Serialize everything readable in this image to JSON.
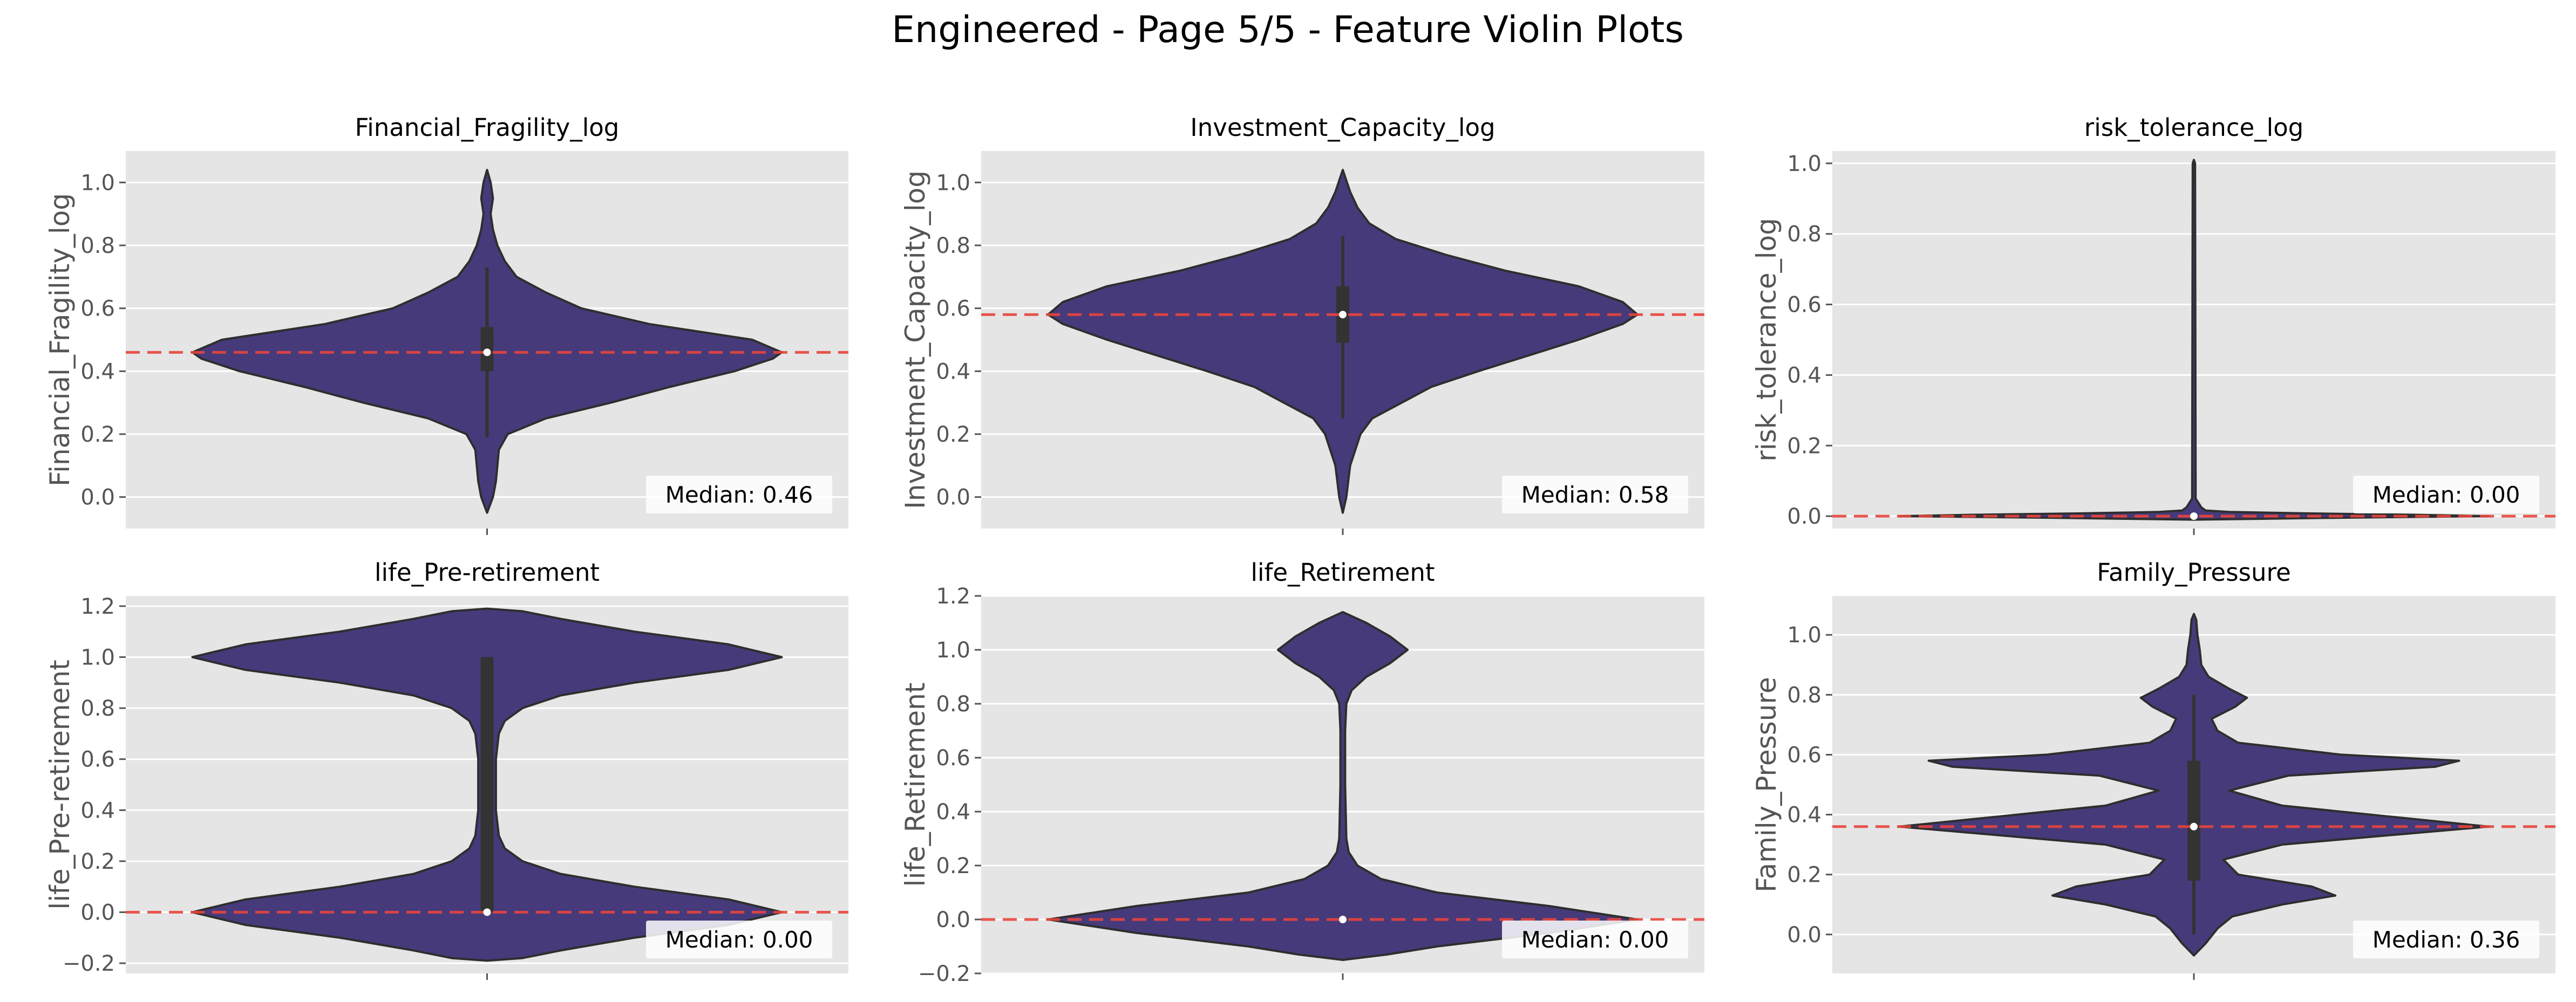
{
  "figure": {
    "title": "Engineered - Page 5/5 - Feature Violin Plots",
    "colors": {
      "violin_fill": "#473a7a",
      "violin_edge": "#2e2e2e",
      "box": "#333333",
      "median_dot": "#ffffff",
      "median_line": "#e8453c",
      "panel_bg": "#e5e5e5",
      "grid": "#ffffff"
    }
  },
  "chart_data": [
    {
      "type": "violin",
      "title": "Financial_Fragility_log",
      "ylabel": "Financial_Fragility_log",
      "ylim": [
        -0.1,
        1.1
      ],
      "yticks": [
        0.0,
        0.2,
        0.4,
        0.6,
        0.8,
        1.0
      ],
      "ytick_labels": [
        "0.0",
        "0.2",
        "0.4",
        "0.6",
        "0.8",
        "1.0"
      ],
      "median": 0.46,
      "median_label": "Median: 0.46",
      "quartiles": [
        0.4,
        0.54
      ],
      "whiskers": [
        0.19,
        0.73
      ],
      "density": [
        {
          "y": -0.05,
          "w": 0.0
        },
        {
          "y": 0.0,
          "w": 0.02
        },
        {
          "y": 0.05,
          "w": 0.03
        },
        {
          "y": 0.15,
          "w": 0.04
        },
        {
          "y": 0.2,
          "w": 0.07
        },
        {
          "y": 0.25,
          "w": 0.2
        },
        {
          "y": 0.3,
          "w": 0.42
        },
        {
          "y": 0.35,
          "w": 0.62
        },
        {
          "y": 0.4,
          "w": 0.84
        },
        {
          "y": 0.44,
          "w": 0.97
        },
        {
          "y": 0.46,
          "w": 1.0
        },
        {
          "y": 0.5,
          "w": 0.9
        },
        {
          "y": 0.55,
          "w": 0.55
        },
        {
          "y": 0.6,
          "w": 0.32
        },
        {
          "y": 0.65,
          "w": 0.2
        },
        {
          "y": 0.7,
          "w": 0.1
        },
        {
          "y": 0.75,
          "w": 0.06
        },
        {
          "y": 0.8,
          "w": 0.035
        },
        {
          "y": 0.85,
          "w": 0.02
        },
        {
          "y": 0.9,
          "w": 0.012
        },
        {
          "y": 0.95,
          "w": 0.02
        },
        {
          "y": 1.0,
          "w": 0.012
        },
        {
          "y": 1.04,
          "w": 0.0
        }
      ]
    },
    {
      "type": "violin",
      "title": "Investment_Capacity_log",
      "ylabel": "Investment_Capacity_log",
      "ylim": [
        -0.1,
        1.1
      ],
      "yticks": [
        0.0,
        0.2,
        0.4,
        0.6,
        0.8,
        1.0
      ],
      "ytick_labels": [
        "0.0",
        "0.2",
        "0.4",
        "0.6",
        "0.8",
        "1.0"
      ],
      "median": 0.58,
      "median_label": "Median: 0.58",
      "quartiles": [
        0.49,
        0.67
      ],
      "whiskers": [
        0.25,
        0.83
      ],
      "density": [
        {
          "y": -0.05,
          "w": 0.0
        },
        {
          "y": 0.0,
          "w": 0.012
        },
        {
          "y": 0.1,
          "w": 0.025
        },
        {
          "y": 0.2,
          "w": 0.06
        },
        {
          "y": 0.25,
          "w": 0.1
        },
        {
          "y": 0.3,
          "w": 0.2
        },
        {
          "y": 0.35,
          "w": 0.3
        },
        {
          "y": 0.4,
          "w": 0.46
        },
        {
          "y": 0.45,
          "w": 0.63
        },
        {
          "y": 0.5,
          "w": 0.8
        },
        {
          "y": 0.55,
          "w": 0.95
        },
        {
          "y": 0.58,
          "w": 1.0
        },
        {
          "y": 0.62,
          "w": 0.95
        },
        {
          "y": 0.67,
          "w": 0.8
        },
        {
          "y": 0.72,
          "w": 0.55
        },
        {
          "y": 0.77,
          "w": 0.35
        },
        {
          "y": 0.82,
          "w": 0.18
        },
        {
          "y": 0.87,
          "w": 0.09
        },
        {
          "y": 0.92,
          "w": 0.05
        },
        {
          "y": 0.97,
          "w": 0.025
        },
        {
          "y": 1.04,
          "w": 0.0
        }
      ]
    },
    {
      "type": "violin",
      "title": "risk_tolerance_log",
      "ylabel": "risk_tolerance_log",
      "ylim": [
        -0.035,
        1.035
      ],
      "yticks": [
        0.0,
        0.2,
        0.4,
        0.6,
        0.8,
        1.0
      ],
      "ytick_labels": [
        "0.0",
        "0.2",
        "0.4",
        "0.6",
        "0.8",
        "1.0"
      ],
      "median": 0.0,
      "median_label": "Median: 0.00",
      "quartiles": [
        0.0,
        0.0
      ],
      "whiskers": [
        0.0,
        0.0
      ],
      "density": [
        {
          "y": -0.01,
          "w": 0.0
        },
        {
          "y": -0.004,
          "w": 0.55
        },
        {
          "y": 0.0,
          "w": 1.0
        },
        {
          "y": 0.004,
          "w": 0.75
        },
        {
          "y": 0.008,
          "w": 0.38
        },
        {
          "y": 0.012,
          "w": 0.12
        },
        {
          "y": 0.016,
          "w": 0.04
        },
        {
          "y": 0.025,
          "w": 0.025
        },
        {
          "y": 0.05,
          "w": 0.006
        },
        {
          "y": 1.0,
          "w": 0.004
        },
        {
          "y": 1.01,
          "w": 0.0
        }
      ]
    },
    {
      "type": "violin",
      "title": "life_Pre-retirement",
      "ylabel": "life_Pre-retirement",
      "ylim": [
        -0.24,
        1.24
      ],
      "yticks": [
        -0.2,
        0.0,
        0.2,
        0.4,
        0.6,
        0.8,
        1.0,
        1.2
      ],
      "ytick_labels": [
        "−0.2",
        "0.0",
        "0.2",
        "0.4",
        "0.6",
        "0.8",
        "1.0",
        "1.2"
      ],
      "median": 0.0,
      "median_label": "Median: 0.00",
      "quartiles": [
        0.0,
        1.0
      ],
      "whiskers": [
        0.0,
        1.0
      ],
      "density": [
        {
          "y": -0.19,
          "w": 0.0
        },
        {
          "y": -0.18,
          "w": 0.12
        },
        {
          "y": -0.15,
          "w": 0.25
        },
        {
          "y": -0.1,
          "w": 0.5
        },
        {
          "y": -0.05,
          "w": 0.82
        },
        {
          "y": 0.0,
          "w": 1.0
        },
        {
          "y": 0.05,
          "w": 0.82
        },
        {
          "y": 0.1,
          "w": 0.5
        },
        {
          "y": 0.15,
          "w": 0.25
        },
        {
          "y": 0.2,
          "w": 0.12
        },
        {
          "y": 0.25,
          "w": 0.06
        },
        {
          "y": 0.3,
          "w": 0.04
        },
        {
          "y": 0.4,
          "w": 0.03
        },
        {
          "y": 0.5,
          "w": 0.03
        },
        {
          "y": 0.6,
          "w": 0.03
        },
        {
          "y": 0.7,
          "w": 0.04
        },
        {
          "y": 0.75,
          "w": 0.06
        },
        {
          "y": 0.8,
          "w": 0.12
        },
        {
          "y": 0.85,
          "w": 0.25
        },
        {
          "y": 0.9,
          "w": 0.5
        },
        {
          "y": 0.95,
          "w": 0.82
        },
        {
          "y": 1.0,
          "w": 1.0
        },
        {
          "y": 1.05,
          "w": 0.82
        },
        {
          "y": 1.1,
          "w": 0.5
        },
        {
          "y": 1.15,
          "w": 0.25
        },
        {
          "y": 1.18,
          "w": 0.12
        },
        {
          "y": 1.19,
          "w": 0.0
        }
      ]
    },
    {
      "type": "violin",
      "title": "life_Retirement",
      "ylabel": "life_Retirement",
      "ylim": [
        -0.2,
        1.2
      ],
      "yticks": [
        -0.2,
        0.0,
        0.2,
        0.4,
        0.6,
        0.8,
        1.0,
        1.2
      ],
      "ytick_labels": [
        "−0.2",
        "0.0",
        "0.2",
        "0.4",
        "0.6",
        "0.8",
        "1.0",
        "1.2"
      ],
      "median": 0.0,
      "median_label": "Median: 0.00",
      "quartiles": [
        0.0,
        0.0
      ],
      "whiskers": [
        0.0,
        0.0
      ],
      "density": [
        {
          "y": -0.15,
          "w": 0.0
        },
        {
          "y": -0.13,
          "w": 0.15
        },
        {
          "y": -0.1,
          "w": 0.32
        },
        {
          "y": -0.05,
          "w": 0.7
        },
        {
          "y": 0.0,
          "w": 1.0
        },
        {
          "y": 0.05,
          "w": 0.7
        },
        {
          "y": 0.1,
          "w": 0.32
        },
        {
          "y": 0.15,
          "w": 0.13
        },
        {
          "y": 0.2,
          "w": 0.05
        },
        {
          "y": 0.25,
          "w": 0.02
        },
        {
          "y": 0.3,
          "w": 0.012
        },
        {
          "y": 0.5,
          "w": 0.008
        },
        {
          "y": 0.7,
          "w": 0.008
        },
        {
          "y": 0.8,
          "w": 0.012
        },
        {
          "y": 0.85,
          "w": 0.03
        },
        {
          "y": 0.9,
          "w": 0.08
        },
        {
          "y": 0.95,
          "w": 0.16
        },
        {
          "y": 1.0,
          "w": 0.22
        },
        {
          "y": 1.05,
          "w": 0.16
        },
        {
          "y": 1.1,
          "w": 0.08
        },
        {
          "y": 1.14,
          "w": 0.0
        }
      ]
    },
    {
      "type": "violin",
      "title": "Family_Pressure",
      "ylabel": "Family_Pressure",
      "ylim": [
        -0.13,
        1.13
      ],
      "yticks": [
        0.0,
        0.2,
        0.4,
        0.6,
        0.8,
        1.0
      ],
      "ytick_labels": [
        "0.0",
        "0.2",
        "0.4",
        "0.6",
        "0.8",
        "1.0"
      ],
      "median": 0.36,
      "median_label": "Median: 0.36",
      "quartiles": [
        0.18,
        0.58
      ],
      "whiskers": [
        0.0,
        0.8
      ],
      "density": [
        {
          "y": -0.07,
          "w": 0.0
        },
        {
          "y": -0.03,
          "w": 0.04
        },
        {
          "y": 0.02,
          "w": 0.08
        },
        {
          "y": 0.06,
          "w": 0.13
        },
        {
          "y": 0.1,
          "w": 0.3
        },
        {
          "y": 0.13,
          "w": 0.48
        },
        {
          "y": 0.16,
          "w": 0.4
        },
        {
          "y": 0.2,
          "w": 0.15
        },
        {
          "y": 0.25,
          "w": 0.1
        },
        {
          "y": 0.3,
          "w": 0.3
        },
        {
          "y": 0.33,
          "w": 0.65
        },
        {
          "y": 0.36,
          "w": 1.0
        },
        {
          "y": 0.39,
          "w": 0.7
        },
        {
          "y": 0.43,
          "w": 0.3
        },
        {
          "y": 0.48,
          "w": 0.12
        },
        {
          "y": 0.53,
          "w": 0.32
        },
        {
          "y": 0.56,
          "w": 0.82
        },
        {
          "y": 0.58,
          "w": 0.9
        },
        {
          "y": 0.6,
          "w": 0.5
        },
        {
          "y": 0.64,
          "w": 0.15
        },
        {
          "y": 0.68,
          "w": 0.08
        },
        {
          "y": 0.72,
          "w": 0.06
        },
        {
          "y": 0.76,
          "w": 0.14
        },
        {
          "y": 0.79,
          "w": 0.18
        },
        {
          "y": 0.82,
          "w": 0.12
        },
        {
          "y": 0.86,
          "w": 0.05
        },
        {
          "y": 0.9,
          "w": 0.025
        },
        {
          "y": 0.95,
          "w": 0.02
        },
        {
          "y": 1.0,
          "w": 0.012
        },
        {
          "y": 1.05,
          "w": 0.008
        },
        {
          "y": 1.07,
          "w": 0.0
        }
      ]
    }
  ]
}
